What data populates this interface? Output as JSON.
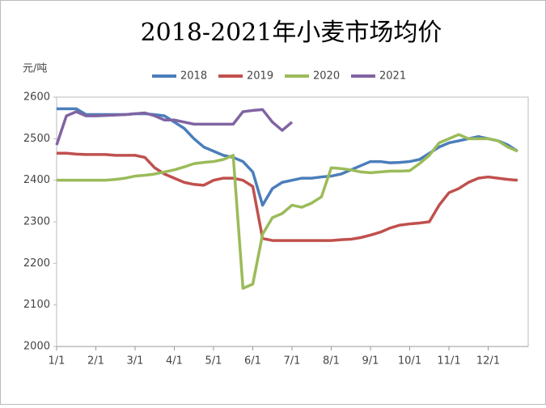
{
  "chart_data": {
    "type": "line",
    "title": "2018-2021年小麦市场均价",
    "y_label": "元/吨",
    "x": [
      "1/1",
      "1/8",
      "1/16",
      "1/24",
      "2/1",
      "2/8",
      "2/16",
      "2/24",
      "3/1",
      "3/8",
      "3/16",
      "3/24",
      "4/1",
      "4/8",
      "4/16",
      "4/24",
      "5/1",
      "5/8",
      "5/16",
      "5/24",
      "6/1",
      "6/8",
      "6/16",
      "6/24",
      "7/1",
      "7/8",
      "7/16",
      "7/24",
      "8/1",
      "8/8",
      "8/16",
      "8/24",
      "9/1",
      "9/8",
      "9/16",
      "9/24",
      "10/1",
      "10/8",
      "10/16",
      "10/24",
      "11/1",
      "11/8",
      "11/16",
      "11/24",
      "12/1",
      "12/8",
      "12/16",
      "12/24"
    ],
    "xticks": [
      "1/1",
      "2/1",
      "3/1",
      "4/1",
      "5/1",
      "6/1",
      "7/1",
      "8/1",
      "9/1",
      "10/1",
      "11/1",
      "12/1"
    ],
    "ylim": [
      2000,
      2600
    ],
    "yticks": [
      2000,
      2100,
      2200,
      2300,
      2400,
      2500,
      2600
    ],
    "legend": "top",
    "grid": false,
    "series": [
      {
        "name": "2018",
        "color": "#4a7ebb",
        "values": [
          2572,
          2572,
          2572,
          2558,
          2558,
          2558,
          2558,
          2558,
          2560,
          2560,
          2558,
          2555,
          2540,
          2525,
          2500,
          2480,
          2470,
          2460,
          2455,
          2445,
          2420,
          2340,
          2380,
          2395,
          2400,
          2405,
          2405,
          2408,
          2410,
          2415,
          2425,
          2435,
          2445,
          2445,
          2442,
          2443,
          2445,
          2450,
          2465,
          2480,
          2490,
          2495,
          2500,
          2505,
          2500,
          2495,
          2485,
          2470
        ]
      },
      {
        "name": "2019",
        "color": "#c0504d",
        "values": [
          2465,
          2465,
          2463,
          2462,
          2462,
          2462,
          2460,
          2460,
          2460,
          2455,
          2430,
          2415,
          2405,
          2395,
          2390,
          2388,
          2400,
          2405,
          2405,
          2400,
          2385,
          2260,
          2255,
          2255,
          2255,
          2255,
          2255,
          2255,
          2255,
          2257,
          2258,
          2262,
          2268,
          2275,
          2285,
          2292,
          2295,
          2297,
          2300,
          2340,
          2370,
          2380,
          2395,
          2405,
          2408,
          2405,
          2402,
          2400
        ]
      },
      {
        "name": "2020",
        "color": "#9bbb59",
        "values": [
          2400,
          2400,
          2400,
          2400,
          2400,
          2400,
          2402,
          2405,
          2410,
          2412,
          2415,
          2420,
          2425,
          2432,
          2440,
          2443,
          2445,
          2450,
          2460,
          2140,
          2150,
          2270,
          2310,
          2320,
          2340,
          2335,
          2345,
          2360,
          2430,
          2428,
          2425,
          2420,
          2418,
          2420,
          2422,
          2422,
          2423,
          2440,
          2460,
          2490,
          2500,
          2510,
          2500,
          2500,
          2500,
          2495,
          2480,
          2470
        ]
      },
      {
        "name": "2021",
        "color": "#8064a2",
        "values": [
          2485,
          2555,
          2565,
          2555,
          2555,
          2556,
          2557,
          2558,
          2560,
          2562,
          2555,
          2545,
          2545,
          2540,
          2535,
          2535,
          2535,
          2535,
          2535,
          2565,
          2568,
          2570,
          2540,
          2520,
          2540,
          null,
          null,
          null,
          null,
          null,
          null,
          null,
          null,
          null,
          null,
          null,
          null,
          null,
          null,
          null,
          null,
          null,
          null,
          null,
          null,
          null,
          null,
          null
        ]
      }
    ]
  }
}
